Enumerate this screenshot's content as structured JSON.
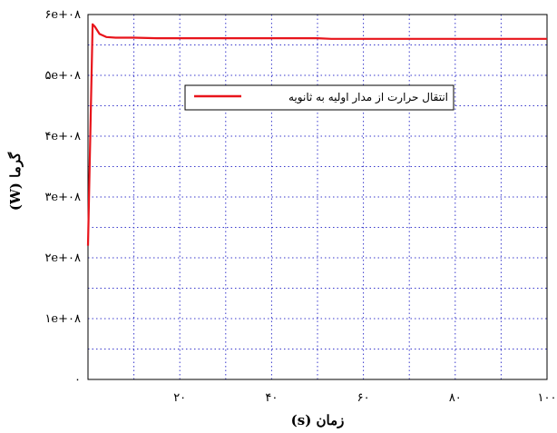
{
  "chart_data": {
    "type": "line",
    "title": "",
    "xlabel": "زمان (s)",
    "ylabel": "گرما (W)",
    "xlim": [
      0,
      100
    ],
    "ylim": [
      0,
      600000000
    ],
    "grid": true,
    "legend_position": "top-right",
    "x_ticks": [
      {
        "value": 20,
        "label": "۲۰"
      },
      {
        "value": 40,
        "label": "۴۰"
      },
      {
        "value": 60,
        "label": "۶۰"
      },
      {
        "value": 80,
        "label": "۸۰"
      },
      {
        "value": 100,
        "label": "۱۰۰"
      }
    ],
    "y_ticks": [
      {
        "value": 0,
        "label": "۰"
      },
      {
        "value": 100000000,
        "label": "۱e+۰۸"
      },
      {
        "value": 200000000,
        "label": "۲e+۰۸"
      },
      {
        "value": 300000000,
        "label": "۳e+۰۸"
      },
      {
        "value": 400000000,
        "label": "۴e+۰۸"
      },
      {
        "value": 500000000,
        "label": "۵e+۰۸"
      },
      {
        "value": 600000000,
        "label": "۶e+۰۸"
      }
    ],
    "series": [
      {
        "name": "انتقال حرارت از مدار اولیه به ثانویه",
        "color": "#e8141b",
        "x": [
          0,
          0.7,
          1.0,
          1.5,
          2.5,
          4,
          6,
          10,
          15,
          20,
          30,
          40,
          50,
          53,
          60,
          70,
          80,
          90,
          100
        ],
        "y": [
          220000000,
          470000000,
          584000000,
          580000000,
          568000000,
          563000000,
          562000000,
          562000000,
          561000000,
          561000000,
          561000000,
          561000000,
          561000000,
          560000000,
          560000000,
          560000000,
          560000000,
          560000000,
          560000000
        ]
      }
    ]
  }
}
